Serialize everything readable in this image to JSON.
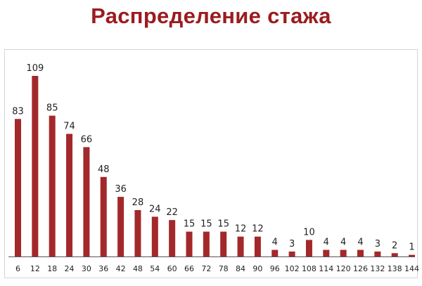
{
  "title": "Распределение стажа",
  "colors": {
    "title": "#9b1c1f",
    "bar": "#a3282a",
    "axis": "#555555",
    "text": "#222222"
  },
  "chart_data": {
    "type": "bar",
    "title": "Распределение стажа",
    "xlabel": "",
    "ylabel": "",
    "categories": [
      "6",
      "12",
      "18",
      "24",
      "30",
      "36",
      "42",
      "48",
      "54",
      "60",
      "66",
      "72",
      "78",
      "84",
      "90",
      "96",
      "102",
      "108",
      "114",
      "120",
      "126",
      "132",
      "138",
      "144"
    ],
    "values": [
      83,
      109,
      85,
      74,
      66,
      48,
      36,
      28,
      24,
      22,
      15,
      15,
      15,
      12,
      12,
      4,
      3,
      10,
      4,
      4,
      4,
      3,
      2,
      1
    ],
    "data_labels": [
      "83",
      "109",
      "85",
      "74",
      "66",
      "48",
      "36",
      "28",
      "24",
      "22",
      "15",
      "15",
      "15",
      "12",
      "12",
      "4",
      "3",
      "10",
      "4",
      "4",
      "4",
      "3",
      "2",
      "1"
    ],
    "ylim": [
      0,
      109
    ],
    "grid": false,
    "legend": "none"
  }
}
